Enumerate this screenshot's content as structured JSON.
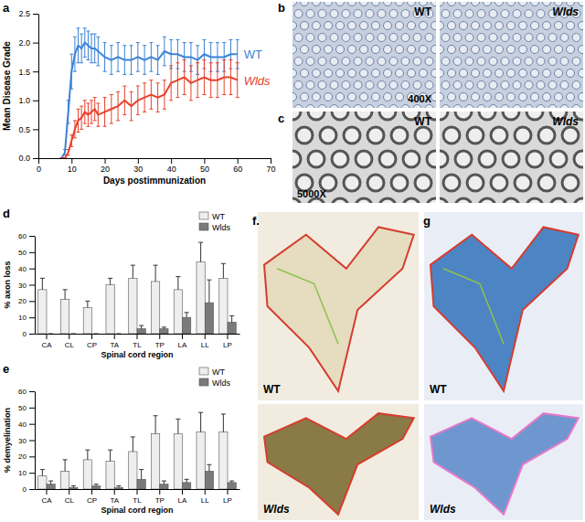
{
  "chart_data": [
    {
      "type": "line",
      "panel": "a",
      "xlabel": "Days postimmunization",
      "ylabel": "Mean Disease Grade",
      "x": [
        7,
        8,
        9,
        10,
        11,
        12,
        13,
        14,
        15,
        16,
        17,
        18,
        20,
        22,
        24,
        26,
        28,
        30,
        32,
        34,
        36,
        38,
        40,
        42,
        44,
        46,
        48,
        50,
        52,
        54,
        56,
        58,
        60
      ],
      "series": [
        {
          "name": "WT",
          "color": "#3b82d6",
          "values": [
            0,
            0.1,
            0.8,
            1.5,
            1.8,
            1.95,
            1.9,
            2.0,
            1.95,
            1.9,
            1.9,
            1.85,
            1.75,
            1.7,
            1.75,
            1.7,
            1.7,
            1.75,
            1.7,
            1.75,
            1.7,
            1.85,
            1.8,
            1.8,
            1.75,
            1.75,
            1.7,
            1.8,
            1.75,
            1.75,
            1.75,
            1.8,
            1.8
          ],
          "errors": [
            0,
            0.05,
            0.2,
            0.3,
            0.3,
            0.3,
            0.25,
            0.25,
            0.25,
            0.25,
            0.25,
            0.25,
            0.25,
            0.25,
            0.25,
            0.25,
            0.25,
            0.25,
            0.25,
            0.25,
            0.25,
            0.25,
            0.25,
            0.25,
            0.25,
            0.25,
            0.25,
            0.25,
            0.25,
            0.25,
            0.25,
            0.25,
            0.25
          ]
        },
        {
          "name": "Wlds",
          "color": "#e8412c",
          "values": [
            0,
            0,
            0.1,
            0.3,
            0.5,
            0.65,
            0.7,
            0.8,
            0.75,
            0.8,
            0.85,
            0.75,
            0.8,
            0.85,
            0.9,
            1.0,
            0.9,
            1.0,
            1.05,
            1.1,
            1.05,
            1.1,
            1.3,
            1.35,
            1.4,
            1.3,
            1.35,
            1.4,
            1.35,
            1.35,
            1.4,
            1.4,
            1.35
          ],
          "errors": [
            0,
            0,
            0.05,
            0.1,
            0.15,
            0.2,
            0.2,
            0.2,
            0.2,
            0.2,
            0.2,
            0.2,
            0.25,
            0.25,
            0.25,
            0.25,
            0.25,
            0.25,
            0.25,
            0.25,
            0.25,
            0.25,
            0.3,
            0.3,
            0.3,
            0.3,
            0.3,
            0.3,
            0.3,
            0.3,
            0.3,
            0.3,
            0.3
          ]
        }
      ],
      "xlim": [
        0,
        70
      ],
      "xticks": [
        0,
        10,
        20,
        30,
        40,
        50,
        60,
        70
      ],
      "ylim": [
        0,
        2.5
      ],
      "yticks": [
        {
          "value": 0,
          "label": "0.0"
        },
        {
          "value": 0.5,
          "label": "0.5"
        },
        {
          "value": 1,
          "label": "1.0"
        },
        {
          "value": 1.5,
          "label": "1.5"
        },
        {
          "value": 2,
          "label": "2.0"
        },
        {
          "value": 2.5,
          "label": "2.5"
        }
      ],
      "grid": false
    },
    {
      "type": "bar",
      "panel": "d",
      "xlabel": "Spinal cord region",
      "ylabel": "% axon loss",
      "categories": [
        "CA",
        "CL",
        "CP",
        "TA",
        "TL",
        "TP",
        "LA",
        "LL",
        "LP"
      ],
      "series": [
        {
          "name": "WT",
          "color": "#eeeeee",
          "values": [
            27,
            21,
            16,
            30,
            34,
            32,
            27,
            44,
            34
          ],
          "errors": [
            7,
            6,
            4,
            4,
            8,
            10,
            8,
            12,
            9
          ]
        },
        {
          "name": "Wlds",
          "color": "#7a7a7a",
          "values": [
            0,
            0,
            0,
            0,
            3,
            3,
            10,
            19,
            7
          ],
          "errors": [
            0,
            0,
            0,
            0,
            2,
            1,
            3,
            14,
            4
          ]
        }
      ],
      "ylim": [
        0,
        60
      ],
      "yticks": [
        0,
        10,
        20,
        30,
        40,
        50,
        60
      ],
      "legend": "upper right",
      "grid": false
    },
    {
      "type": "bar",
      "panel": "e",
      "xlabel": "Spinal cord region",
      "ylabel": "% demyelination",
      "categories": [
        "CA",
        "CL",
        "CP",
        "TA",
        "TL",
        "TP",
        "LA",
        "LL",
        "LP"
      ],
      "series": [
        {
          "name": "WT",
          "color": "#eeeeee",
          "values": [
            8,
            11,
            18,
            17,
            23,
            34,
            34,
            35,
            35
          ],
          "errors": [
            4,
            7,
            6,
            7,
            9,
            11,
            9,
            12,
            11
          ]
        },
        {
          "name": "Wlds",
          "color": "#7a7a7a",
          "values": [
            3,
            1,
            2,
            1,
            6,
            3,
            4,
            11,
            4
          ],
          "errors": [
            2,
            1,
            1,
            1,
            6,
            2,
            2,
            4,
            1
          ]
        }
      ],
      "ylim": [
        0,
        60
      ],
      "yticks": [
        0,
        10,
        20,
        30,
        40,
        50,
        60
      ],
      "legend": "upper right",
      "grid": false
    }
  ],
  "image_panels": [
    {
      "panel": "b",
      "tiles": [
        "WT",
        "Wlds"
      ],
      "magnification": "400X"
    },
    {
      "panel": "c",
      "tiles": [
        "WT",
        "Wlds"
      ],
      "magnification": "5000X"
    },
    {
      "panel": "f.",
      "tiles": [
        "WT",
        "Wlds"
      ]
    },
    {
      "panel": "g",
      "tiles": [
        "WT",
        "Wlds"
      ]
    }
  ]
}
